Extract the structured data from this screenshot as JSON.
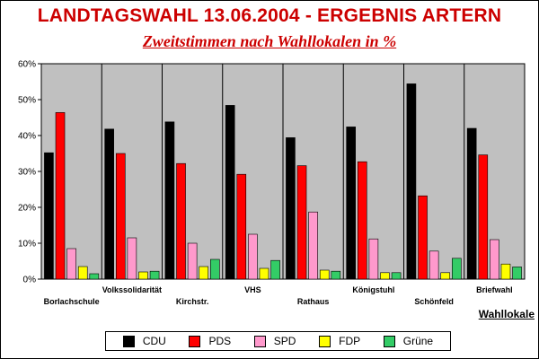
{
  "chart_data": {
    "type": "bar",
    "title": "LANDTAGSWAHL 13.06.2004 - ERGEBNIS ARTERN",
    "subtitle": "Zweitstimmen nach Wahllokalen in %",
    "xlabel": "Wahllokale",
    "ylabel": "",
    "ylim": [
      0,
      60
    ],
    "yticks": [
      "0%",
      "10%",
      "20%",
      "30%",
      "40%",
      "50%",
      "60%"
    ],
    "grid": false,
    "legend_position": "bottom",
    "categories": [
      "Borlachschule",
      "Volkssolidarität",
      "Kirchstr.",
      "VHS",
      "Rathaus",
      "Königstuhl",
      "Schönfeld",
      "Briefwahl"
    ],
    "series": [
      {
        "name": "CDU",
        "color": "#000000",
        "values": [
          35.2,
          41.8,
          43.8,
          48.4,
          39.4,
          42.4,
          54.4,
          42.0
        ]
      },
      {
        "name": "PDS",
        "color": "#ff0000",
        "values": [
          46.4,
          35.0,
          32.2,
          29.2,
          31.6,
          32.7,
          23.2,
          34.6
        ]
      },
      {
        "name": "SPD",
        "color": "#ff99cc",
        "values": [
          8.5,
          11.5,
          10.0,
          12.5,
          18.7,
          11.2,
          7.8,
          11.0
        ]
      },
      {
        "name": "FDP",
        "color": "#ffff00",
        "values": [
          3.5,
          2.0,
          3.5,
          3.0,
          2.5,
          1.8,
          1.8,
          4.2
        ]
      },
      {
        "name": "Grüne",
        "color": "#33cc66",
        "values": [
          1.5,
          2.2,
          5.5,
          5.2,
          2.2,
          1.8,
          5.8,
          3.4
        ]
      }
    ]
  },
  "colors": {
    "title": "#cc0000",
    "plot_background": "#c0c0c0"
  }
}
